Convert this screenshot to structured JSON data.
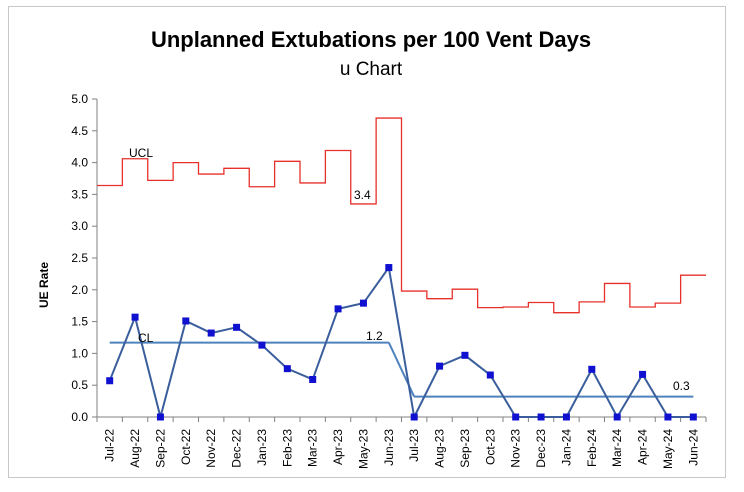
{
  "chart_data": {
    "type": "line",
    "title": "Unplanned Extubations per 100 Vent Days",
    "subtitle": "u Chart",
    "ylabel": "UE Rate",
    "xlabel": "",
    "ylim": [
      0,
      5
    ],
    "yticks": [
      "0.0",
      "0.5",
      "1.0",
      "1.5",
      "2.0",
      "2.5",
      "3.0",
      "3.5",
      "4.0",
      "4.5",
      "5.0"
    ],
    "grid": false,
    "categories": [
      "Jul-22",
      "Aug-22",
      "Sep-22",
      "Oct-22",
      "Nov-22",
      "Dec-22",
      "Jan-23",
      "Feb-23",
      "Mar-23",
      "Apr-23",
      "May-23",
      "Jun-23",
      "Jul-23",
      "Aug-23",
      "Sep-23",
      "Oct-23",
      "Nov-23",
      "Dec-23",
      "Jan-24",
      "Feb-24",
      "Mar-24",
      "Apr-24",
      "May-24",
      "Jun-24"
    ],
    "series": [
      {
        "values": [
          0.57,
          1.57,
          0.0,
          1.51,
          1.32,
          1.41,
          1.13,
          0.76,
          0.59,
          1.7,
          1.79,
          2.35,
          0.0,
          0.8,
          0.97,
          0.66,
          0.0,
          0.0,
          0.0,
          0.75,
          0.0,
          0.67,
          0.0,
          0.0
        ],
        "color": "#3A5E9C"
      },
      {
        "values": [
          1.17,
          1.17,
          1.17,
          1.17,
          1.17,
          1.17,
          1.17,
          1.17,
          1.17,
          1.17,
          1.17,
          1.17,
          0.32,
          0.32,
          0.32,
          0.32,
          0.32,
          0.32,
          0.32,
          0.32,
          0.32,
          0.32,
          0.32,
          0.32
        ],
        "color": "#4F81BD"
      },
      {
        "values": [
          3.64,
          4.06,
          3.72,
          4.0,
          3.82,
          3.91,
          3.62,
          4.02,
          3.68,
          4.19,
          3.35,
          4.7,
          1.98,
          1.86,
          2.01,
          1.72,
          1.73,
          1.8,
          1.64,
          1.81,
          2.1,
          1.73,
          1.79,
          2.23
        ],
        "color": "#E8302A"
      }
    ],
    "annotations": {
      "ucl": "UCL",
      "cl": "CL",
      "cl_value_1": "1.2",
      "ucl_value": "3.4",
      "cl_value_2": "0.3"
    },
    "colors": {
      "data": "#3A5E9C",
      "marker": "#1010D0",
      "center": "#4F81BD",
      "ucl": "#E8302A",
      "axis": "#808080"
    }
  }
}
